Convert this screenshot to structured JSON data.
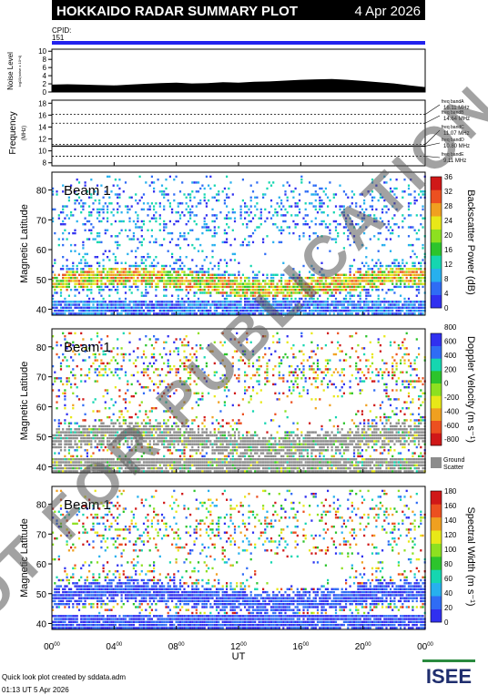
{
  "header": {
    "title": "HOKKAIDO RADAR SUMMARY PLOT",
    "date": "4 Apr 2026"
  },
  "cpid": {
    "label": "CPID:",
    "value": "151"
  },
  "colors": {
    "header_bg": "#000000",
    "header_text": "#ffffff",
    "cpid_bar": "#2222ee",
    "noise_fill": "#000000",
    "ground_scatter": "#8c8c8c",
    "watermark": "#555555"
  },
  "watermark": "NOT FOR PUBLICATION",
  "footer": {
    "credit": "Quick look plot created by sddata.adm",
    "timestamp": "01:13 UT  5 Apr 2026",
    "logo": "ISEE"
  },
  "chart_data": [
    {
      "type": "area",
      "panel": "noise",
      "ylabel": "Noise Level",
      "ylabel_sub": "log10(noise x 10^4)",
      "yticks": [
        0,
        2,
        4,
        6,
        8,
        10
      ],
      "ylim": [
        0,
        10.5
      ],
      "x": [
        0,
        1,
        2,
        3,
        4,
        5,
        6,
        7,
        8,
        9,
        10,
        11,
        12,
        13,
        14,
        15,
        16,
        17,
        18,
        19,
        20,
        21,
        22,
        23,
        24
      ],
      "values": [
        1.8,
        1.9,
        1.8,
        1.7,
        1.6,
        1.8,
        2.0,
        2.2,
        2.3,
        2.1,
        2.2,
        2.4,
        2.3,
        2.5,
        2.6,
        2.8,
        3.0,
        3.1,
        3.2,
        3.0,
        2.7,
        2.4,
        2.1,
        1.6,
        1.2
      ]
    },
    {
      "type": "line",
      "panel": "frequency",
      "ylabel": "Frequency",
      "ylabel_sub": "(MHz)",
      "yticks": [
        8,
        10,
        12,
        14,
        16,
        18
      ],
      "ylim": [
        7.5,
        18.5
      ],
      "dashed_levels": [
        16.11,
        14.64,
        11.07,
        10.8,
        9.11
      ],
      "bands": [
        {
          "name": "freq bandA",
          "value": "16.11 MHz"
        },
        {
          "name": "freq bandB",
          "value": "14.64 MHz"
        },
        {
          "name": "freq bandC",
          "value": "11.07 MHz"
        },
        {
          "name": "freq bandD",
          "value": "10.80 MHz"
        },
        {
          "name": "freq bandE",
          "value": "9.11 MHz"
        }
      ]
    },
    {
      "type": "heatmap",
      "panel": "power",
      "beam": "Beam  1",
      "ylabel": "Magnetic Latitude",
      "yticks": [
        40,
        50,
        60,
        70,
        80
      ],
      "ylim": [
        38,
        86
      ],
      "colorbar_label": "Backscatter Power (dB)",
      "colorbar_ticks": [
        "0",
        "4",
        "8",
        "12",
        "16",
        "20",
        "24",
        "28",
        "32",
        "36"
      ],
      "colorbar_colors": [
        "#3030f0",
        "#2f6cf5",
        "#27b0ee",
        "#15d6b0",
        "#2cc42c",
        "#8de020",
        "#e8e818",
        "#f0a020",
        "#ec5020",
        "#d01818"
      ]
    },
    {
      "type": "heatmap",
      "panel": "velocity",
      "beam": "Beam  1",
      "ylabel": "Magnetic Latitude",
      "yticks": [
        40,
        50,
        60,
        70,
        80
      ],
      "ylim": [
        38,
        86
      ],
      "colorbar_label": "Doppler Velocity (m s⁻¹)",
      "colorbar_ticks": [
        "-800",
        "-600",
        "-400",
        "-200",
        "0",
        "200",
        "400",
        "600",
        "800"
      ],
      "colorbar_colors": [
        "#d01818",
        "#ec5020",
        "#f0a020",
        "#e8e818",
        "#8de020",
        "#2cc42c",
        "#15d6b0",
        "#2f6cf5",
        "#3030f0"
      ],
      "ground_scatter_label": [
        "Ground",
        "Scatter"
      ]
    },
    {
      "type": "heatmap",
      "panel": "width",
      "beam": "Beam  1",
      "ylabel": "Magnetic Latitude",
      "yticks": [
        40,
        50,
        60,
        70,
        80
      ],
      "ylim": [
        38,
        86
      ],
      "colorbar_label": "Spectral Width (m s⁻¹)",
      "colorbar_ticks": [
        "0",
        "20",
        "40",
        "60",
        "80",
        "100",
        "120",
        "140",
        "160",
        "180"
      ],
      "colorbar_colors": [
        "#3030f0",
        "#2f6cf5",
        "#27b0ee",
        "#15d6b0",
        "#2cc42c",
        "#8de020",
        "#e8e818",
        "#f0a020",
        "#ec5020",
        "#d01818"
      ]
    }
  ],
  "xaxis": {
    "label": "UT",
    "ticks": [
      {
        "hour": "00",
        "sup": "00",
        "t": 0
      },
      {
        "hour": "04",
        "sup": "00",
        "t": 4
      },
      {
        "hour": "08",
        "sup": "00",
        "t": 8
      },
      {
        "hour": "12",
        "sup": "00",
        "t": 12
      },
      {
        "hour": "16",
        "sup": "00",
        "t": 16
      },
      {
        "hour": "20",
        "sup": "00",
        "t": 20
      },
      {
        "hour": "00",
        "sup": "00",
        "t": 24
      }
    ]
  }
}
